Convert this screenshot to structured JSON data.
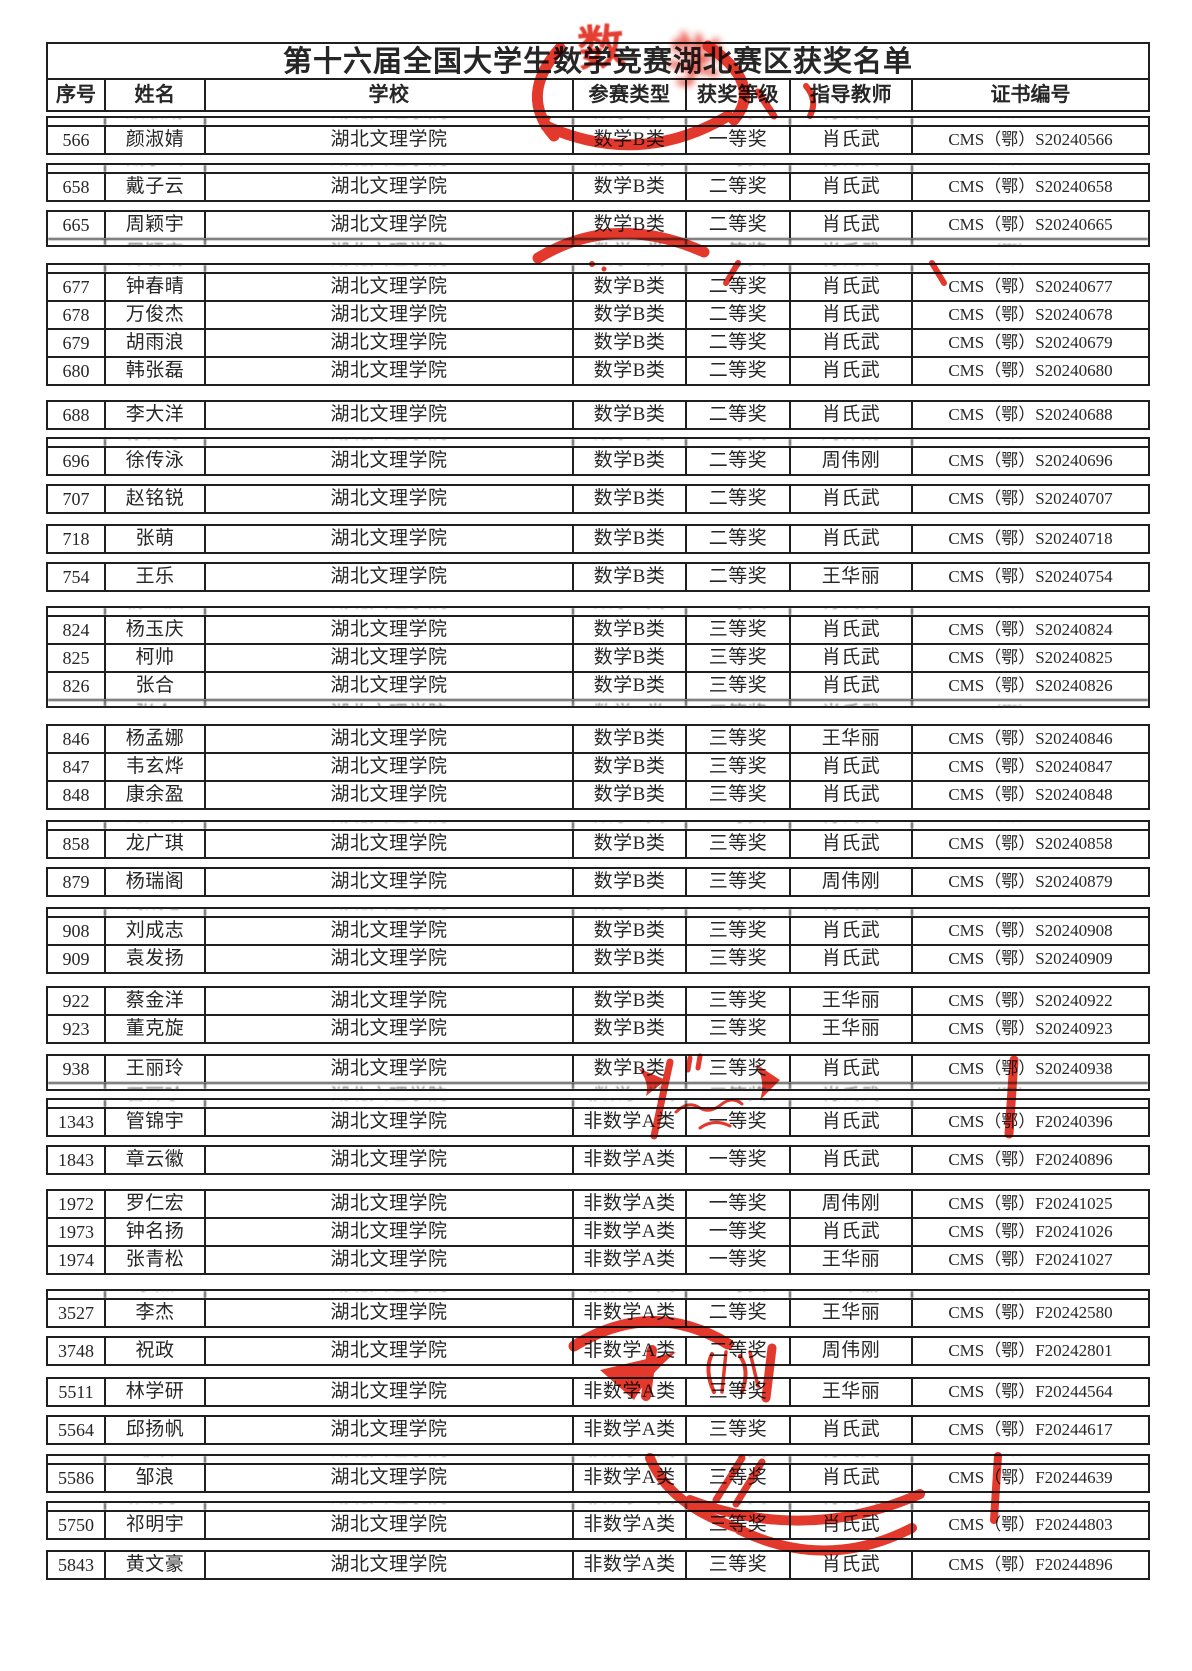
{
  "title": "第十六届全国大学生数学竞赛湖北赛区获奖名单",
  "columns": [
    "序号",
    "姓名",
    "学校",
    "参赛类型",
    "获奖等级",
    "指导教师",
    "证书编号"
  ],
  "rows": [
    {
      "no": "566",
      "name": "颜淑婧",
      "school": "湖北文理学院",
      "type": "数学B类",
      "level": "一等奖",
      "teacher": "肖氏武",
      "cert": "CMS（鄂）S20240566"
    },
    {
      "no": "658",
      "name": "戴子云",
      "school": "湖北文理学院",
      "type": "数学B类",
      "level": "二等奖",
      "teacher": "肖氏武",
      "cert": "CMS（鄂）S20240658"
    },
    {
      "no": "665",
      "name": "周颖宇",
      "school": "湖北文理学院",
      "type": "数学B类",
      "level": "二等奖",
      "teacher": "肖氏武",
      "cert": "CMS（鄂）S20240665"
    },
    {
      "no": "677",
      "name": "钟春晴",
      "school": "湖北文理学院",
      "type": "数学B类",
      "level": "二等奖",
      "teacher": "肖氏武",
      "cert": "CMS（鄂）S20240677"
    },
    {
      "no": "678",
      "name": "万俊杰",
      "school": "湖北文理学院",
      "type": "数学B类",
      "level": "二等奖",
      "teacher": "肖氏武",
      "cert": "CMS（鄂）S20240678"
    },
    {
      "no": "679",
      "name": "胡雨浪",
      "school": "湖北文理学院",
      "type": "数学B类",
      "level": "二等奖",
      "teacher": "肖氏武",
      "cert": "CMS（鄂）S20240679"
    },
    {
      "no": "680",
      "name": "韩张磊",
      "school": "湖北文理学院",
      "type": "数学B类",
      "level": "二等奖",
      "teacher": "肖氏武",
      "cert": "CMS（鄂）S20240680"
    },
    {
      "no": "688",
      "name": "李大洋",
      "school": "湖北文理学院",
      "type": "数学B类",
      "level": "二等奖",
      "teacher": "肖氏武",
      "cert": "CMS（鄂）S20240688"
    },
    {
      "no": "696",
      "name": "徐传泳",
      "school": "湖北文理学院",
      "type": "数学B类",
      "level": "二等奖",
      "teacher": "周伟刚",
      "cert": "CMS（鄂）S20240696"
    },
    {
      "no": "707",
      "name": "赵铭锐",
      "school": "湖北文理学院",
      "type": "数学B类",
      "level": "二等奖",
      "teacher": "肖氏武",
      "cert": "CMS（鄂）S20240707"
    },
    {
      "no": "718",
      "name": "张萌",
      "school": "湖北文理学院",
      "type": "数学B类",
      "level": "二等奖",
      "teacher": "肖氏武",
      "cert": "CMS（鄂）S20240718"
    },
    {
      "no": "754",
      "name": "王乐",
      "school": "湖北文理学院",
      "type": "数学B类",
      "level": "二等奖",
      "teacher": "王华丽",
      "cert": "CMS（鄂）S20240754"
    },
    {
      "no": "824",
      "name": "杨玉庆",
      "school": "湖北文理学院",
      "type": "数学B类",
      "level": "三等奖",
      "teacher": "肖氏武",
      "cert": "CMS（鄂）S20240824"
    },
    {
      "no": "825",
      "name": "柯帅",
      "school": "湖北文理学院",
      "type": "数学B类",
      "level": "三等奖",
      "teacher": "肖氏武",
      "cert": "CMS（鄂）S20240825"
    },
    {
      "no": "826",
      "name": "张合",
      "school": "湖北文理学院",
      "type": "数学B类",
      "level": "三等奖",
      "teacher": "肖氏武",
      "cert": "CMS（鄂）S20240826"
    },
    {
      "no": "846",
      "name": "杨孟娜",
      "school": "湖北文理学院",
      "type": "数学B类",
      "level": "三等奖",
      "teacher": "王华丽",
      "cert": "CMS（鄂）S20240846"
    },
    {
      "no": "847",
      "name": "韦玄烨",
      "school": "湖北文理学院",
      "type": "数学B类",
      "level": "三等奖",
      "teacher": "肖氏武",
      "cert": "CMS（鄂）S20240847"
    },
    {
      "no": "848",
      "name": "康余盈",
      "school": "湖北文理学院",
      "type": "数学B类",
      "level": "三等奖",
      "teacher": "肖氏武",
      "cert": "CMS（鄂）S20240848"
    },
    {
      "no": "858",
      "name": "龙广琪",
      "school": "湖北文理学院",
      "type": "数学B类",
      "level": "三等奖",
      "teacher": "肖氏武",
      "cert": "CMS（鄂）S20240858"
    },
    {
      "no": "879",
      "name": "杨瑞阁",
      "school": "湖北文理学院",
      "type": "数学B类",
      "level": "三等奖",
      "teacher": "周伟刚",
      "cert": "CMS（鄂）S20240879"
    },
    {
      "no": "908",
      "name": "刘成志",
      "school": "湖北文理学院",
      "type": "数学B类",
      "level": "三等奖",
      "teacher": "肖氏武",
      "cert": "CMS（鄂）S20240908"
    },
    {
      "no": "909",
      "name": "袁发扬",
      "school": "湖北文理学院",
      "type": "数学B类",
      "level": "三等奖",
      "teacher": "肖氏武",
      "cert": "CMS（鄂）S20240909"
    },
    {
      "no": "922",
      "name": "蔡金洋",
      "school": "湖北文理学院",
      "type": "数学B类",
      "level": "三等奖",
      "teacher": "王华丽",
      "cert": "CMS（鄂）S20240922"
    },
    {
      "no": "923",
      "name": "董克旋",
      "school": "湖北文理学院",
      "type": "数学B类",
      "level": "三等奖",
      "teacher": "王华丽",
      "cert": "CMS（鄂）S20240923"
    },
    {
      "no": "938",
      "name": "王丽玲",
      "school": "湖北文理学院",
      "type": "数学B类",
      "level": "三等奖",
      "teacher": "肖氏武",
      "cert": "CMS（鄂）S20240938"
    },
    {
      "no": "1343",
      "name": "管锦宇",
      "school": "湖北文理学院",
      "type": "非数学A类",
      "level": "一等奖",
      "teacher": "肖氏武",
      "cert": "CMS（鄂）F20240396"
    },
    {
      "no": "1843",
      "name": "章云徽",
      "school": "湖北文理学院",
      "type": "非数学A类",
      "level": "一等奖",
      "teacher": "肖氏武",
      "cert": "CMS（鄂）F20240896"
    },
    {
      "no": "1972",
      "name": "罗仁宏",
      "school": "湖北文理学院",
      "type": "非数学A类",
      "level": "一等奖",
      "teacher": "周伟刚",
      "cert": "CMS（鄂）F20241025"
    },
    {
      "no": "1973",
      "name": "钟名扬",
      "school": "湖北文理学院",
      "type": "非数学A类",
      "level": "一等奖",
      "teacher": "肖氏武",
      "cert": "CMS（鄂）F20241026"
    },
    {
      "no": "1974",
      "name": "张青松",
      "school": "湖北文理学院",
      "type": "非数学A类",
      "level": "一等奖",
      "teacher": "王华丽",
      "cert": "CMS（鄂）F20241027"
    },
    {
      "no": "3527",
      "name": "李杰",
      "school": "湖北文理学院",
      "type": "非数学A类",
      "level": "二等奖",
      "teacher": "王华丽",
      "cert": "CMS（鄂）F20242580"
    },
    {
      "no": "3748",
      "name": "祝政",
      "school": "湖北文理学院",
      "type": "非数学A类",
      "level": "二等奖",
      "teacher": "周伟刚",
      "cert": "CMS（鄂）F20242801"
    },
    {
      "no": "5511",
      "name": "林学研",
      "school": "湖北文理学院",
      "type": "非数学A类",
      "level": "三等奖",
      "teacher": "王华丽",
      "cert": "CMS（鄂）F20244564"
    },
    {
      "no": "5564",
      "name": "邱扬帆",
      "school": "湖北文理学院",
      "type": "非数学A类",
      "level": "三等奖",
      "teacher": "肖氏武",
      "cert": "CMS（鄂）F20244617"
    },
    {
      "no": "5586",
      "name": "邹浪",
      "school": "湖北文理学院",
      "type": "非数学A类",
      "level": "三等奖",
      "teacher": "肖氏武",
      "cert": "CMS（鄂）F20244639"
    },
    {
      "no": "5750",
      "name": "祁明宇",
      "school": "湖北文理学院",
      "type": "非数学A类",
      "level": "三等奖",
      "teacher": "肖氏武",
      "cert": "CMS（鄂）F20244803"
    },
    {
      "no": "5843",
      "name": "黄文豪",
      "school": "湖北文理学院",
      "type": "非数学A类",
      "level": "三等奖",
      "teacher": "肖氏武",
      "cert": "CMS（鄂）F20244896"
    }
  ],
  "groups": [
    {
      "gap": 4,
      "ghost_top": true,
      "ghost_bottom": false,
      "rows": [
        0
      ]
    },
    {
      "gap": 8,
      "ghost_top": true,
      "ghost_bottom": false,
      "rows": [
        1
      ]
    },
    {
      "gap": 8,
      "ghost_top": false,
      "ghost_bottom": true,
      "rows": [
        2
      ]
    },
    {
      "gap": 16,
      "ghost_top": true,
      "ghost_bottom": false,
      "rows": [
        3,
        4,
        5,
        6
      ]
    },
    {
      "gap": 14,
      "ghost_top": false,
      "ghost_bottom": false,
      "rows": [
        7
      ]
    },
    {
      "gap": 7,
      "ghost_top": true,
      "ghost_bottom": false,
      "rows": [
        8
      ]
    },
    {
      "gap": 8,
      "ghost_top": false,
      "ghost_bottom": false,
      "rows": [
        9
      ]
    },
    {
      "gap": 10,
      "ghost_top": false,
      "ghost_bottom": false,
      "rows": [
        10
      ]
    },
    {
      "gap": 8,
      "ghost_top": false,
      "ghost_bottom": false,
      "rows": [
        11
      ]
    },
    {
      "gap": 14,
      "ghost_top": true,
      "ghost_bottom": true,
      "rows": [
        12,
        13,
        14
      ]
    },
    {
      "gap": 16,
      "ghost_top": false,
      "ghost_bottom": false,
      "rows": [
        15,
        16,
        17
      ]
    },
    {
      "gap": 10,
      "ghost_top": true,
      "ghost_bottom": false,
      "rows": [
        18
      ]
    },
    {
      "gap": 8,
      "ghost_top": false,
      "ghost_bottom": false,
      "rows": [
        19
      ]
    },
    {
      "gap": 10,
      "ghost_top": true,
      "ghost_bottom": false,
      "rows": [
        20,
        21
      ]
    },
    {
      "gap": 12,
      "ghost_top": false,
      "ghost_bottom": false,
      "rows": [
        22,
        23
      ]
    },
    {
      "gap": 10,
      "ghost_top": false,
      "ghost_bottom": true,
      "rows": [
        24
      ]
    },
    {
      "gap": 7,
      "ghost_top": true,
      "ghost_bottom": false,
      "rows": [
        25
      ]
    },
    {
      "gap": 8,
      "ghost_top": false,
      "ghost_bottom": false,
      "rows": [
        26
      ]
    },
    {
      "gap": 14,
      "ghost_top": false,
      "ghost_bottom": false,
      "rows": [
        27,
        28,
        29
      ]
    },
    {
      "gap": 14,
      "ghost_top": true,
      "ghost_bottom": false,
      "rows": [
        30
      ]
    },
    {
      "gap": 8,
      "ghost_top": false,
      "ghost_bottom": false,
      "rows": [
        31
      ]
    },
    {
      "gap": 11,
      "ghost_top": false,
      "ghost_bottom": false,
      "rows": [
        32
      ]
    },
    {
      "gap": 8,
      "ghost_top": false,
      "ghost_bottom": false,
      "rows": [
        33
      ]
    },
    {
      "gap": 9,
      "ghost_top": true,
      "ghost_bottom": false,
      "rows": [
        34
      ]
    },
    {
      "gap": 8,
      "ghost_top": true,
      "ghost_bottom": false,
      "rows": [
        35
      ]
    },
    {
      "gap": 10,
      "ghost_top": false,
      "ghost_bottom": false,
      "rows": [
        36
      ]
    }
  ],
  "stamp": {
    "color": "#e1291b",
    "glyph": "数",
    "glyph2": "学"
  }
}
